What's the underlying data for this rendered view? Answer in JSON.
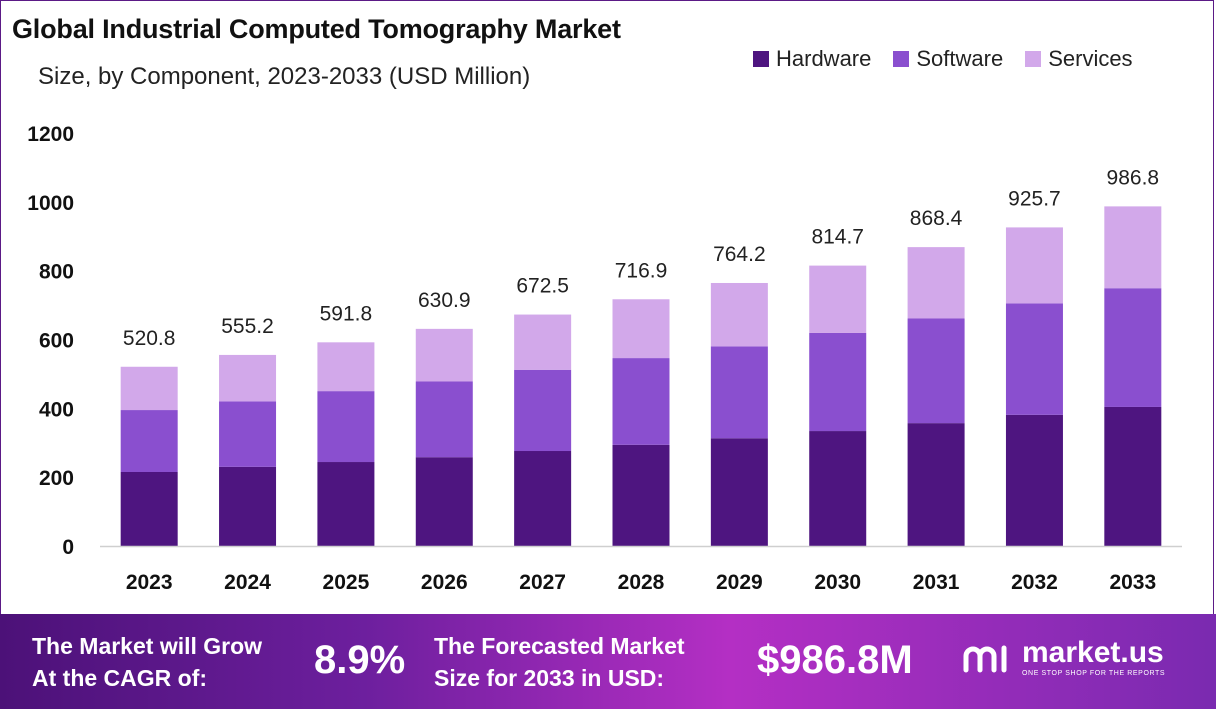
{
  "title": "Global Industrial Computed Tomography Market",
  "subtitle": "Size, by Component, 2023-2033 (USD Million)",
  "legend": [
    {
      "label": "Hardware",
      "color": "#4e1580"
    },
    {
      "label": "Software",
      "color": "#8a4fcf"
    },
    {
      "label": "Services",
      "color": "#d2a8ea"
    }
  ],
  "chart_data": {
    "type": "bar",
    "stacked": true,
    "categories": [
      "2023",
      "2024",
      "2025",
      "2026",
      "2027",
      "2028",
      "2029",
      "2030",
      "2031",
      "2032",
      "2033"
    ],
    "series": [
      {
        "name": "Hardware",
        "color": "#4e1580",
        "values": [
          215,
          230,
          244,
          258,
          276,
          294,
          313,
          334,
          357,
          381,
          404
        ]
      },
      {
        "name": "Software",
        "color": "#8a4fcf",
        "values": [
          180,
          190,
          206,
          220,
          236,
          252,
          267,
          285,
          304,
          324,
          345
        ]
      },
      {
        "name": "Services",
        "color": "#d2a8ea",
        "values": [
          125.8,
          135.2,
          141.8,
          152.9,
          160.5,
          170.9,
          184.2,
          195.7,
          207.4,
          220.7,
          237.8
        ]
      }
    ],
    "totals": [
      520.8,
      555.2,
      591.8,
      630.9,
      672.5,
      716.9,
      764.2,
      814.7,
      868.4,
      925.7,
      986.8
    ],
    "total_labels": [
      "520.8",
      "555.2",
      "591.8",
      "630.9",
      "672.5",
      "716.9",
      "764.2",
      "814.7",
      "868.4",
      "925.7",
      "986.8"
    ],
    "ylim": [
      0,
      1200
    ],
    "yticks": [
      0,
      200,
      400,
      600,
      800,
      1000,
      1200
    ],
    "ytick_labels": [
      "0",
      "200",
      "400",
      "600",
      "800",
      "1000",
      "1200"
    ],
    "grid": false,
    "legend_position": "top-right"
  },
  "footer": {
    "cagr_label_line1": "The Market will Grow",
    "cagr_label_line2": "At the CAGR of:",
    "cagr_value": "8.9%",
    "forecast_label_line1": "The Forecasted Market",
    "forecast_label_line2": "Size for 2033 in USD:",
    "forecast_value": "$986.8M",
    "brand_name": "market.us",
    "brand_tagline": "ONE STOP SHOP FOR THE REPORTS"
  }
}
